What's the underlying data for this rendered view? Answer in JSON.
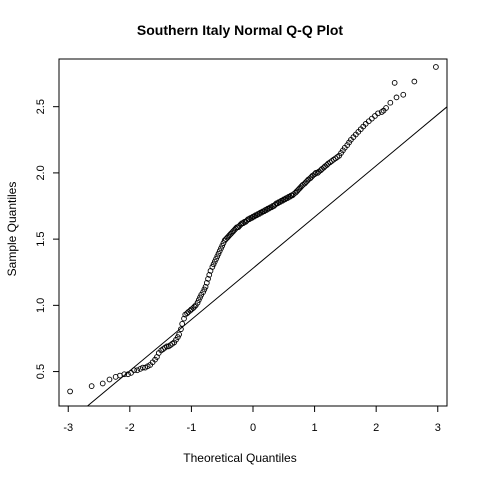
{
  "chart_data": {
    "type": "scatter",
    "title": "Southern Italy Normal Q-Q Plot",
    "xlabel": "Theoretical Quantiles",
    "ylabel": "Sample Quantiles",
    "xlim": [
      -3.15,
      3.15
    ],
    "ylim": [
      0.24,
      2.86
    ],
    "x_ticks": [
      -3,
      -2,
      -1,
      0,
      1,
      2,
      3
    ],
    "y_ticks": [
      0.5,
      1.0,
      1.5,
      2.0,
      2.5
    ],
    "y_tick_labels": [
      "0.5",
      "1.0",
      "1.5",
      "2.0",
      "2.5"
    ],
    "grid": false,
    "reference_line": {
      "slope": 0.387,
      "intercept": 1.28
    },
    "points": [
      [
        -2.97,
        0.35
      ],
      [
        -2.62,
        0.39
      ],
      [
        -2.44,
        0.41
      ],
      [
        -2.33,
        0.44
      ],
      [
        -2.23,
        0.46
      ],
      [
        -2.16,
        0.47
      ],
      [
        -2.09,
        0.48
      ],
      [
        -2.03,
        0.48
      ],
      [
        -1.98,
        0.49
      ],
      [
        -1.93,
        0.51
      ],
      [
        -1.88,
        0.51
      ],
      [
        -1.83,
        0.52
      ],
      [
        -1.79,
        0.53
      ],
      [
        -1.75,
        0.53
      ],
      [
        -1.71,
        0.54
      ],
      [
        -1.67,
        0.55
      ],
      [
        -1.63,
        0.57
      ],
      [
        -1.59,
        0.59
      ],
      [
        -1.56,
        0.61
      ],
      [
        -1.53,
        0.64
      ],
      [
        -1.49,
        0.66
      ],
      [
        -1.46,
        0.67
      ],
      [
        -1.43,
        0.68
      ],
      [
        -1.4,
        0.69
      ],
      [
        -1.37,
        0.69
      ],
      [
        -1.34,
        0.7
      ],
      [
        -1.31,
        0.71
      ],
      [
        -1.28,
        0.72
      ],
      [
        -1.25,
        0.74
      ],
      [
        -1.22,
        0.76
      ],
      [
        -1.2,
        0.78
      ],
      [
        -1.17,
        0.82
      ],
      [
        -1.15,
        0.86
      ],
      [
        -1.12,
        0.9
      ],
      [
        -1.1,
        0.93
      ],
      [
        -1.07,
        0.94
      ],
      [
        -1.05,
        0.95
      ],
      [
        -1.02,
        0.96
      ],
      [
        -1.0,
        0.97
      ],
      [
        -0.97,
        0.98
      ],
      [
        -0.95,
        0.99
      ],
      [
        -0.93,
        1.0
      ],
      [
        -0.9,
        1.02
      ],
      [
        -0.88,
        1.04
      ],
      [
        -0.86,
        1.06
      ],
      [
        -0.84,
        1.08
      ],
      [
        -0.81,
        1.1
      ],
      [
        -0.79,
        1.12
      ],
      [
        -0.77,
        1.14
      ],
      [
        -0.75,
        1.17
      ],
      [
        -0.73,
        1.2
      ],
      [
        -0.71,
        1.23
      ],
      [
        -0.69,
        1.26
      ],
      [
        -0.66,
        1.29
      ],
      [
        -0.64,
        1.31
      ],
      [
        -0.62,
        1.33
      ],
      [
        -0.6,
        1.35
      ],
      [
        -0.58,
        1.37
      ],
      [
        -0.56,
        1.39
      ],
      [
        -0.54,
        1.41
      ],
      [
        -0.52,
        1.43
      ],
      [
        -0.5,
        1.45
      ],
      [
        -0.48,
        1.47
      ],
      [
        -0.46,
        1.49
      ],
      [
        -0.44,
        1.5
      ],
      [
        -0.42,
        1.51
      ],
      [
        -0.4,
        1.52
      ],
      [
        -0.38,
        1.53
      ],
      [
        -0.36,
        1.54
      ],
      [
        -0.34,
        1.55
      ],
      [
        -0.32,
        1.56
      ],
      [
        -0.3,
        1.57
      ],
      [
        -0.28,
        1.58
      ],
      [
        -0.26,
        1.59
      ],
      [
        -0.24,
        1.59
      ],
      [
        -0.22,
        1.6
      ],
      [
        -0.2,
        1.61
      ],
      [
        -0.18,
        1.62
      ],
      [
        -0.16,
        1.62
      ],
      [
        -0.14,
        1.63
      ],
      [
        -0.12,
        1.63
      ],
      [
        -0.1,
        1.64
      ],
      [
        -0.08,
        1.65
      ],
      [
        -0.06,
        1.65
      ],
      [
        -0.04,
        1.66
      ],
      [
        -0.02,
        1.66
      ],
      [
        0.0,
        1.67
      ],
      [
        0.02,
        1.67
      ],
      [
        0.04,
        1.68
      ],
      [
        0.06,
        1.68
      ],
      [
        0.08,
        1.69
      ],
      [
        0.1,
        1.69
      ],
      [
        0.12,
        1.7
      ],
      [
        0.14,
        1.7
      ],
      [
        0.16,
        1.71
      ],
      [
        0.18,
        1.71
      ],
      [
        0.2,
        1.72
      ],
      [
        0.22,
        1.72
      ],
      [
        0.24,
        1.73
      ],
      [
        0.26,
        1.73
      ],
      [
        0.28,
        1.74
      ],
      [
        0.3,
        1.74
      ],
      [
        0.32,
        1.75
      ],
      [
        0.34,
        1.75
      ],
      [
        0.36,
        1.76
      ],
      [
        0.38,
        1.77
      ],
      [
        0.4,
        1.77
      ],
      [
        0.42,
        1.78
      ],
      [
        0.44,
        1.78
      ],
      [
        0.46,
        1.79
      ],
      [
        0.48,
        1.79
      ],
      [
        0.5,
        1.8
      ],
      [
        0.52,
        1.8
      ],
      [
        0.54,
        1.81
      ],
      [
        0.56,
        1.81
      ],
      [
        0.58,
        1.82
      ],
      [
        0.6,
        1.82
      ],
      [
        0.62,
        1.83
      ],
      [
        0.64,
        1.83
      ],
      [
        0.66,
        1.84
      ],
      [
        0.69,
        1.85
      ],
      [
        0.71,
        1.86
      ],
      [
        0.73,
        1.87
      ],
      [
        0.75,
        1.88
      ],
      [
        0.77,
        1.89
      ],
      [
        0.79,
        1.9
      ],
      [
        0.81,
        1.91
      ],
      [
        0.84,
        1.92
      ],
      [
        0.86,
        1.93
      ],
      [
        0.88,
        1.94
      ],
      [
        0.9,
        1.95
      ],
      [
        0.93,
        1.96
      ],
      [
        0.95,
        1.97
      ],
      [
        0.97,
        1.98
      ],
      [
        1.0,
        1.99
      ],
      [
        1.02,
        2.0
      ],
      [
        1.05,
        2.0
      ],
      [
        1.07,
        2.01
      ],
      [
        1.1,
        2.02
      ],
      [
        1.12,
        2.03
      ],
      [
        1.15,
        2.04
      ],
      [
        1.17,
        2.05
      ],
      [
        1.2,
        2.06
      ],
      [
        1.22,
        2.07
      ],
      [
        1.25,
        2.08
      ],
      [
        1.28,
        2.09
      ],
      [
        1.31,
        2.1
      ],
      [
        1.34,
        2.11
      ],
      [
        1.37,
        2.12
      ],
      [
        1.4,
        2.13
      ],
      [
        1.43,
        2.15
      ],
      [
        1.46,
        2.17
      ],
      [
        1.49,
        2.19
      ],
      [
        1.53,
        2.21
      ],
      [
        1.56,
        2.23
      ],
      [
        1.59,
        2.25
      ],
      [
        1.63,
        2.27
      ],
      [
        1.67,
        2.29
      ],
      [
        1.71,
        2.31
      ],
      [
        1.75,
        2.33
      ],
      [
        1.79,
        2.35
      ],
      [
        1.83,
        2.37
      ],
      [
        1.88,
        2.39
      ],
      [
        1.93,
        2.41
      ],
      [
        1.98,
        2.43
      ],
      [
        2.03,
        2.45
      ],
      [
        2.09,
        2.46
      ],
      [
        2.16,
        2.49
      ],
      [
        2.23,
        2.53
      ],
      [
        2.33,
        2.57
      ],
      [
        2.44,
        2.59
      ],
      [
        2.62,
        2.69
      ],
      [
        2.97,
        2.8
      ],
      [
        2.3,
        2.68
      ],
      [
        2.12,
        2.47
      ]
    ]
  }
}
